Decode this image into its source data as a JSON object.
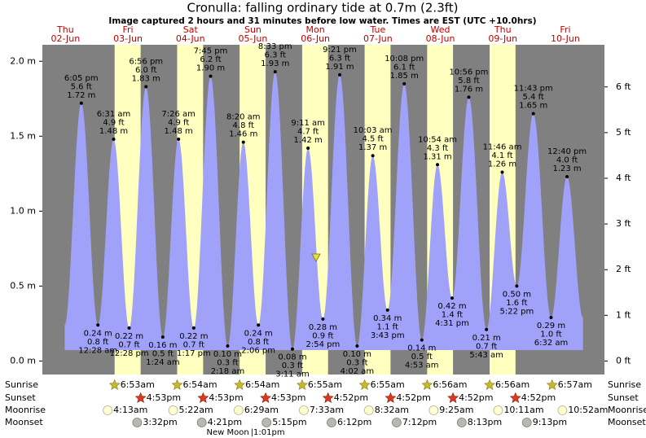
{
  "chart_data": {
    "type": "tide",
    "title": "Cronulla: falling  ordinary tide at 0.7m (2.3ft)",
    "subtitle": "Image captured 2 hours and 31 minutes before low water. Times are EST (UTC +10.0hrs)",
    "ylim": [
      -0.09,
      2.11
    ],
    "yticks": [
      {
        "value": 0,
        "label": "0.0 m"
      },
      {
        "value": 0.5,
        "label": "0.5 m"
      },
      {
        "value": 1,
        "label": "1.0 m"
      },
      {
        "value": 1.5,
        "label": "1.5 m"
      },
      {
        "value": 2,
        "label": "2.0 m"
      }
    ],
    "y2ticks": [
      {
        "value": 0,
        "label": "0 ft"
      },
      {
        "value": 1,
        "label": "1 ft"
      },
      {
        "value": 2,
        "label": "2 ft"
      },
      {
        "value": 3,
        "label": "3 ft"
      },
      {
        "value": 4,
        "label": "4 ft"
      },
      {
        "value": 5,
        "label": "5 ft"
      },
      {
        "value": 6,
        "label": "6 ft"
      }
    ],
    "row_labels": {
      "sunrise": "Sunrise",
      "sunset": "Sunset",
      "moonrise": "Moonrise",
      "moonset": "Moonset"
    },
    "days": [
      {
        "weekday": "Thu",
        "date": "02-Jun",
        "tides": [
          {
            "time": "6:05 pm",
            "ft": 5.6,
            "ft_label": "5.6 ft",
            "m": 1.72,
            "m_label": "1.72 m"
          }
        ]
      },
      {
        "weekday": "Fri",
        "date": "03-Jun",
        "sunrise": "6:53am",
        "sunset": "4:53pm",
        "moonrise": "4:13am",
        "moonset": "3:32pm",
        "tides": [
          {
            "time": "12:28 am",
            "ft": 0.8,
            "ft_label": "0.8 ft",
            "m": 0.24,
            "m_label": "0.24 m"
          },
          {
            "time": "6:31 am",
            "ft": 4.9,
            "ft_label": "4.9 ft",
            "m": 1.48,
            "m_label": "1.48 m"
          },
          {
            "time": "12:28 pm",
            "ft": 0.7,
            "ft_label": "0.7 ft",
            "m": 0.22,
            "m_label": "0.22 m"
          },
          {
            "time": "6:56 pm",
            "ft": 6.0,
            "ft_label": "6.0 ft",
            "m": 1.83,
            "m_label": "1.83 m"
          }
        ]
      },
      {
        "weekday": "Sat",
        "date": "04-Jun",
        "sunrise": "6:54am",
        "sunset": "4:53pm",
        "moonrise": "5:22am",
        "moonset": "4:21pm",
        "tides": [
          {
            "time": "1:24 am",
            "ft": 0.5,
            "ft_label": "0.5 ft",
            "m": 0.16,
            "m_label": "0.16 m"
          },
          {
            "time": "7:26 am",
            "ft": 4.9,
            "ft_label": "4.9 ft",
            "m": 1.48,
            "m_label": "1.48 m"
          },
          {
            "time": "1:17 pm",
            "ft": 0.7,
            "ft_label": "0.7 ft",
            "m": 0.22,
            "m_label": "0.22 m"
          },
          {
            "time": "7:45 pm",
            "ft": 6.2,
            "ft_label": "6.2 ft",
            "m": 1.9,
            "m_label": "1.90 m"
          }
        ]
      },
      {
        "weekday": "Sun",
        "date": "05-Jun",
        "sunrise": "6:54am",
        "sunset": "4:53pm",
        "moonrise": "6:29am",
        "moonset": "5:15pm",
        "moon_phase": {
          "label": "New Moon",
          "time": "|1:01pm"
        },
        "tides": [
          {
            "time": "2:18 am",
            "ft": 0.3,
            "ft_label": "0.3 ft",
            "m": 0.1,
            "m_label": "0.10 m"
          },
          {
            "time": "8:20 am",
            "ft": 4.8,
            "ft_label": "4.8 ft",
            "m": 1.46,
            "m_label": "1.46 m"
          },
          {
            "time": "2:06 pm",
            "ft": 0.8,
            "ft_label": "0.8 ft",
            "m": 0.24,
            "m_label": "0.24 m"
          },
          {
            "time": "8:33 pm",
            "ft": 6.3,
            "ft_label": "6.3 ft",
            "m": 1.93,
            "m_label": "1.93 m"
          }
        ]
      },
      {
        "weekday": "Mon",
        "date": "06-Jun",
        "sunrise": "6:55am",
        "sunset": "4:52pm",
        "moonrise": "7:33am",
        "moonset": "6:12pm",
        "tides": [
          {
            "time": "3:11 am",
            "ft": 0.3,
            "ft_label": "0.3 ft",
            "m": 0.08,
            "m_label": "0.08 m"
          },
          {
            "time": "9:11 am",
            "ft": 4.7,
            "ft_label": "4.7 ft",
            "m": 1.42,
            "m_label": "1.42 m"
          },
          {
            "time": "2:54 pm",
            "ft": 0.9,
            "ft_label": "0.9 ft",
            "m": 0.28,
            "m_label": "0.28 m"
          },
          {
            "time": "9:21 pm",
            "ft": 6.3,
            "ft_label": "6.3 ft",
            "m": 1.91,
            "m_label": "1.91 m"
          }
        ]
      },
      {
        "weekday": "Tue",
        "date": "07-Jun",
        "sunrise": "6:55am",
        "sunset": "4:52pm",
        "moonrise": "8:32am",
        "moonset": "7:12pm",
        "tides": [
          {
            "time": "4:02 am",
            "ft": 0.3,
            "ft_label": "0.3 ft",
            "m": 0.1,
            "m_label": "0.10 m"
          },
          {
            "time": "10:03 am",
            "ft": 4.5,
            "ft_label": "4.5 ft",
            "m": 1.37,
            "m_label": "1.37 m"
          },
          {
            "time": "3:43 pm",
            "ft": 1.1,
            "ft_label": "1.1 ft",
            "m": 0.34,
            "m_label": "0.34 m"
          },
          {
            "time": "10:08 pm",
            "ft": 6.1,
            "ft_label": "6.1 ft",
            "m": 1.85,
            "m_label": "1.85 m"
          }
        ]
      },
      {
        "weekday": "Wed",
        "date": "08-Jun",
        "sunrise": "6:56am",
        "sunset": "4:52pm",
        "moonrise": "9:25am",
        "moonset": "8:13pm",
        "tides": [
          {
            "time": "4:53 am",
            "ft": 0.5,
            "ft_label": "0.5 ft",
            "m": 0.14,
            "m_label": "0.14 m"
          },
          {
            "time": "10:54 am",
            "ft": 4.3,
            "ft_label": "4.3 ft",
            "m": 1.31,
            "m_label": "1.31 m"
          },
          {
            "time": "4:31 pm",
            "ft": 1.4,
            "ft_label": "1.4 ft",
            "m": 0.42,
            "m_label": "0.42 m"
          },
          {
            "time": "10:56 pm",
            "ft": 5.8,
            "ft_label": "5.8 ft",
            "m": 1.76,
            "m_label": "1.76 m"
          }
        ]
      },
      {
        "weekday": "Thu",
        "date": "09-Jun",
        "sunrise": "6:56am",
        "sunset": "4:52pm",
        "moonrise": "10:11am",
        "moonset": "9:13pm",
        "tides": [
          {
            "time": "5:43 am",
            "ft": 0.7,
            "ft_label": "0.7 ft",
            "m": 0.21,
            "m_label": "0.21 m"
          },
          {
            "time": "11:46 am",
            "ft": 4.1,
            "ft_label": "4.1 ft",
            "m": 1.26,
            "m_label": "1.26 m"
          },
          {
            "time": "5:22 pm",
            "ft": 1.6,
            "ft_label": "1.6 ft",
            "m": 0.5,
            "m_label": "0.50 m"
          },
          {
            "time": "11:43 pm",
            "ft": 5.4,
            "ft_label": "5.4 ft",
            "m": 1.65,
            "m_label": "1.65 m"
          }
        ]
      },
      {
        "weekday": "Fri",
        "date": "10-Jun",
        "sunrise": "6:57am",
        "moonrise": "10:52am",
        "tides": [
          {
            "time": "6:32 am",
            "ft": 1.0,
            "ft_label": "1.0 ft",
            "m": 0.29,
            "m_label": "0.29 m"
          },
          {
            "time": "12:40 pm",
            "ft": 4.0,
            "ft_label": "4.0 ft",
            "m": 1.23,
            "m_label": "1.23 m"
          }
        ]
      }
    ]
  }
}
